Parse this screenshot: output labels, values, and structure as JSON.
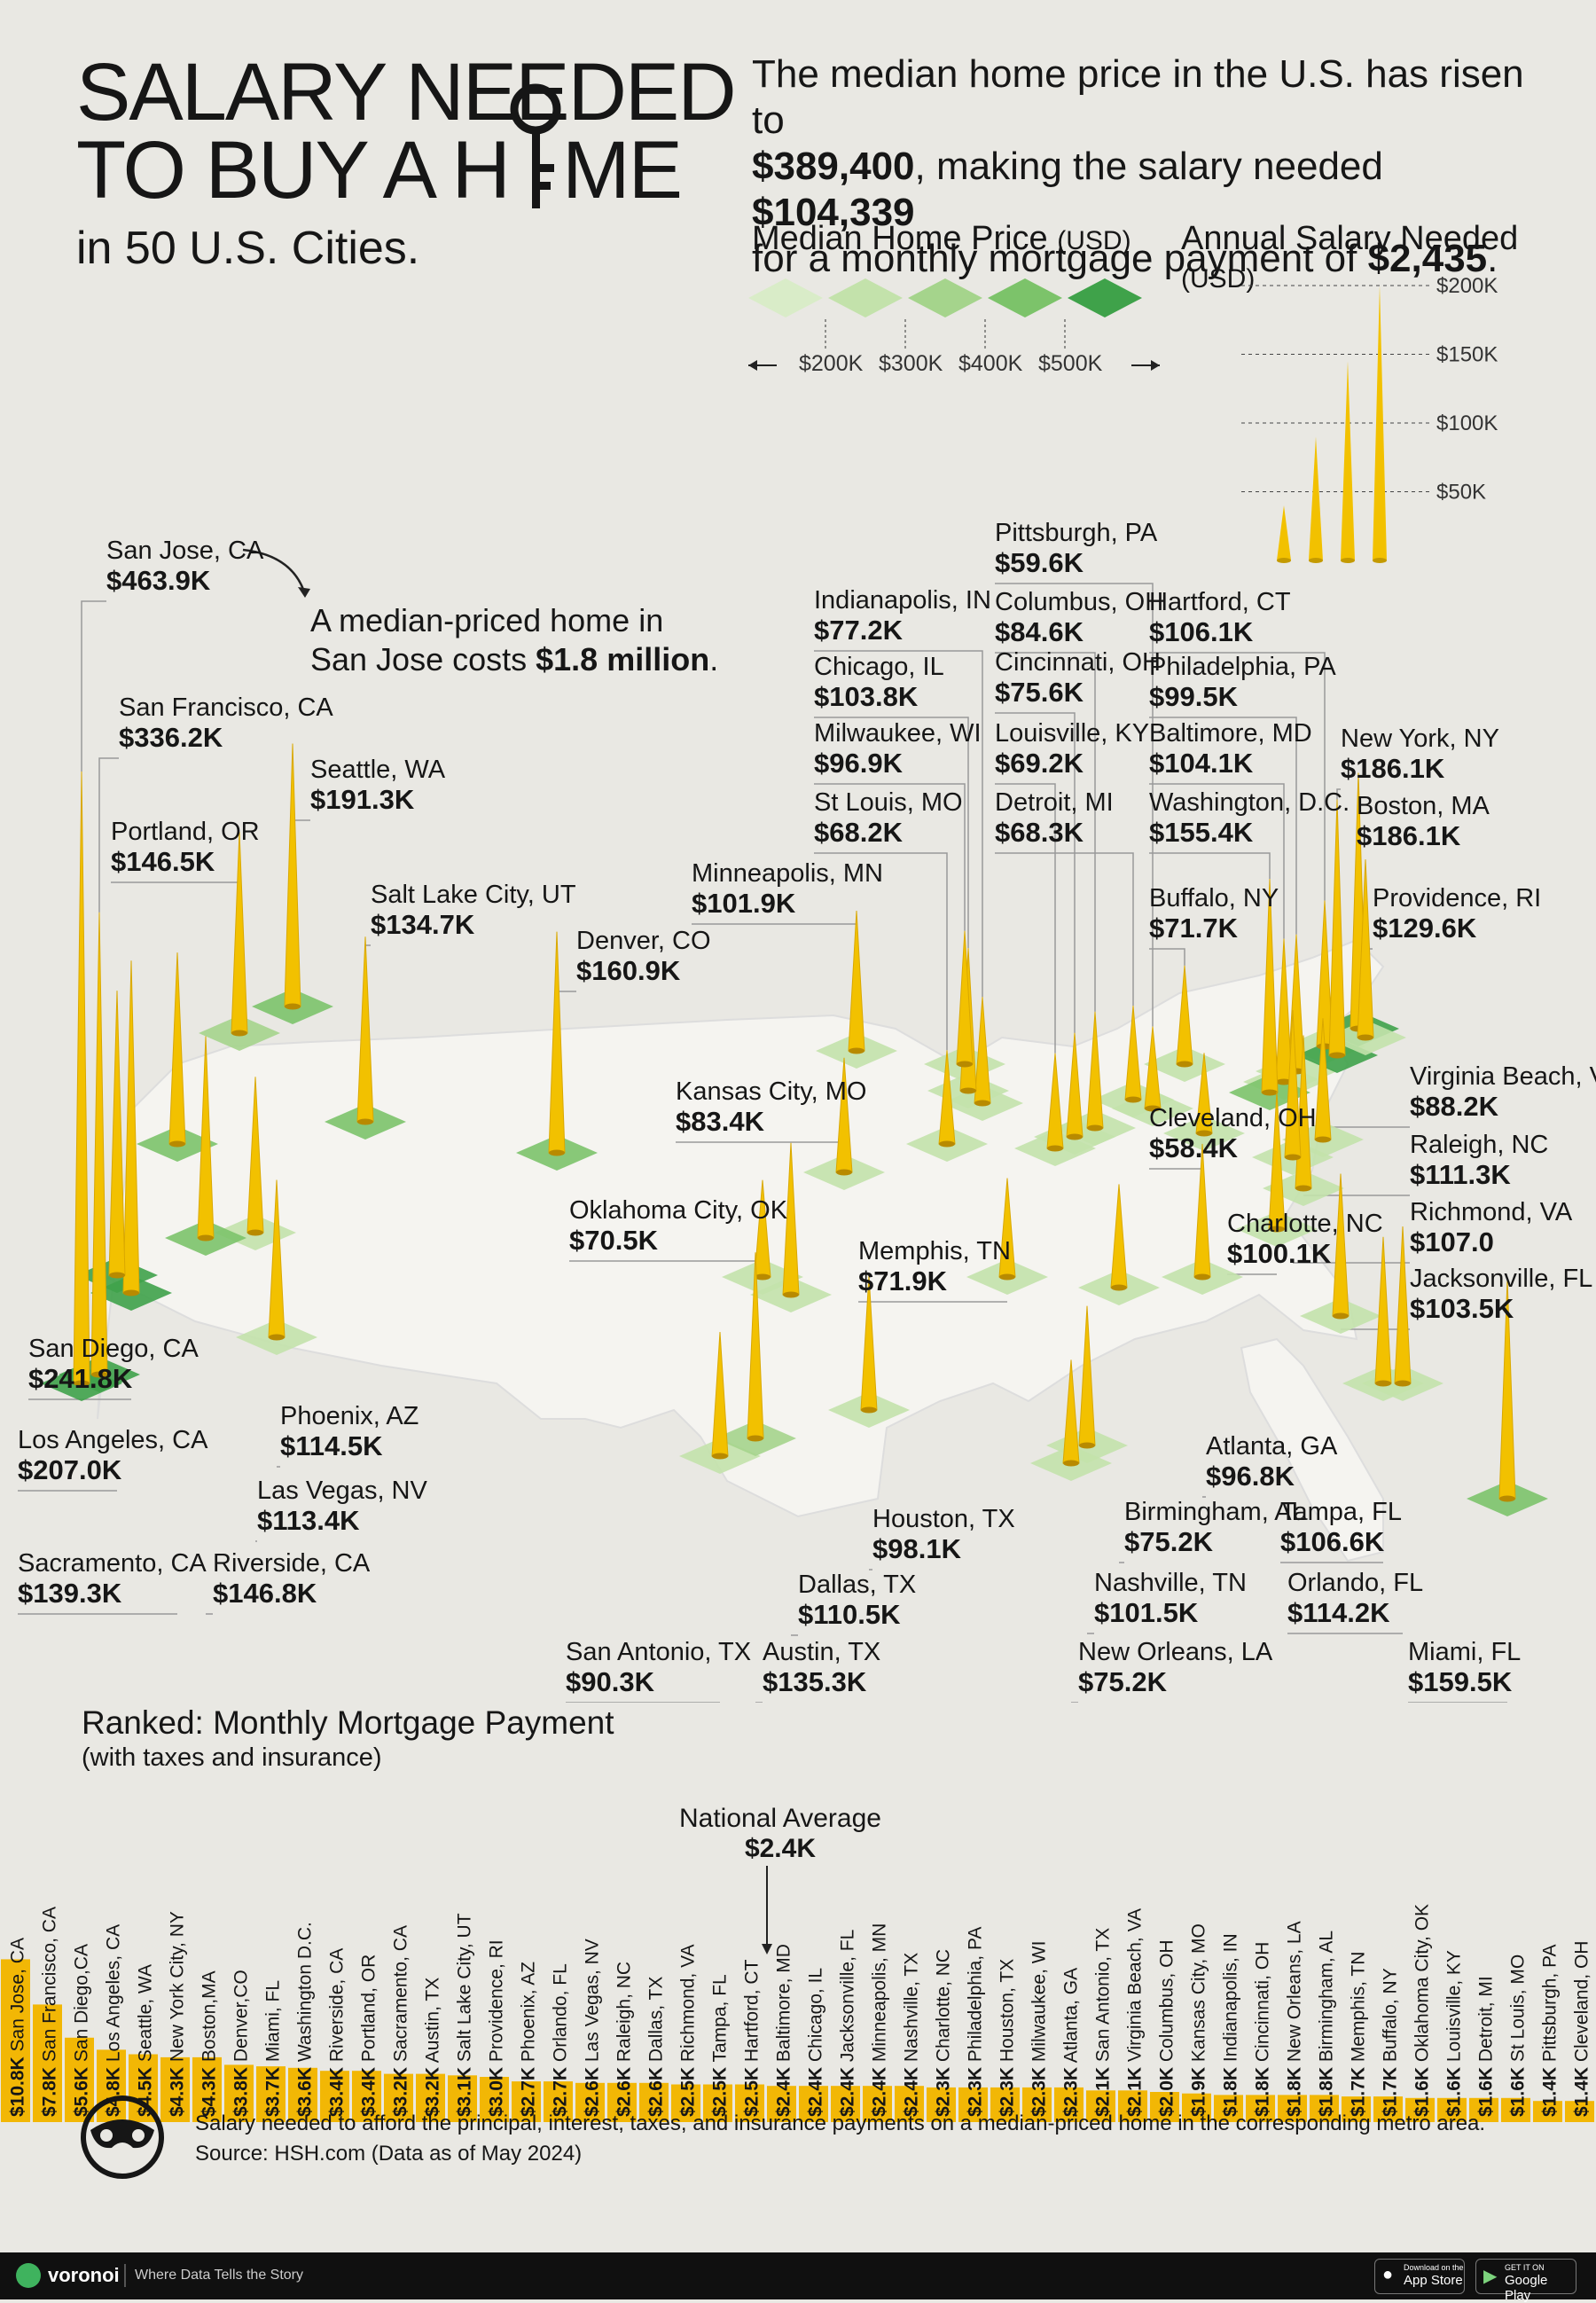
{
  "header": {
    "title_line1": "SALARY NEEDED",
    "title_line2": "TO BUY A H",
    "title_line2_end": "ME",
    "subtitle": "in 50 U.S. Cities.",
    "intro_1": "The median home price in the U.S. has risen to",
    "intro_price": "$389,400",
    "intro_2": ", making the salary needed ",
    "intro_salary": "$104,339",
    "intro_3": "for a monthly mortgage payment of ",
    "intro_payment": "$2,435",
    "intro_4": "."
  },
  "legend": {
    "price_title": "Median Home Price",
    "price_unit": "(USD)",
    "price_ticks": [
      "$200K",
      "$300K",
      "$400K",
      "$500K"
    ],
    "salary_title": "Annual Salary Needed",
    "salary_unit": "(USD)",
    "salary_ticks": [
      "$200K",
      "$150K",
      "$100K",
      "$50K"
    ],
    "colors": [
      "#d9ecc8",
      "#c3e2ab",
      "#a5d48c",
      "#7cc36a",
      "#3fa24a"
    ]
  },
  "annotation": {
    "line1": "A median-priced home in",
    "line2_a": "San Jose costs ",
    "line2_b": "$1.8 million",
    "line2_c": "."
  },
  "chart_data": [
    {
      "type": "map",
      "metric": "Annual Salary Needed (USD)",
      "points": [
        {
          "city": "San Jose, CA",
          "value": "$463.9K",
          "salary_k": 463.9
        },
        {
          "city": "San Francisco, CA",
          "value": "$336.2K",
          "salary_k": 336.2
        },
        {
          "city": "Seattle, WA",
          "value": "$191.3K",
          "salary_k": 191.3
        },
        {
          "city": "Portland, OR",
          "value": "$146.5K",
          "salary_k": 146.5
        },
        {
          "city": "Salt Lake City, UT",
          "value": "$134.7K",
          "salary_k": 134.7
        },
        {
          "city": "Denver, CO",
          "value": "$160.9K",
          "salary_k": 160.9
        },
        {
          "city": "Minneapolis, MN",
          "value": "$101.9K",
          "salary_k": 101.9
        },
        {
          "city": "Indianapolis, IN",
          "value": "$77.2K",
          "salary_k": 77.2
        },
        {
          "city": "Chicago, IL",
          "value": "$103.8K",
          "salary_k": 103.8
        },
        {
          "city": "Milwaukee, WI",
          "value": "$96.9K",
          "salary_k": 96.9
        },
        {
          "city": "St Louis, MO",
          "value": "$68.2K",
          "salary_k": 68.2
        },
        {
          "city": "Pittsburgh, PA",
          "value": "$59.6K",
          "salary_k": 59.6
        },
        {
          "city": "Columbus, OH",
          "value": "$84.6K",
          "salary_k": 84.6
        },
        {
          "city": "Cincinnati, OH",
          "value": "$75.6K",
          "salary_k": 75.6
        },
        {
          "city": "Louisville, KY",
          "value": "$69.2K",
          "salary_k": 69.2
        },
        {
          "city": "Detroit, MI",
          "value": "$68.3K",
          "salary_k": 68.3
        },
        {
          "city": "Hartford, CT",
          "value": "$106.1K",
          "salary_k": 106.1
        },
        {
          "city": "Philadelphia, PA",
          "value": "$99.5K",
          "salary_k": 99.5
        },
        {
          "city": "Baltimore, MD",
          "value": "$104.1K",
          "salary_k": 104.1
        },
        {
          "city": "Washington, D.C.",
          "value": "$155.4K",
          "salary_k": 155.4
        },
        {
          "city": "Buffalo, NY",
          "value": "$71.7K",
          "salary_k": 71.7
        },
        {
          "city": "New York, NY",
          "value": "$186.1K",
          "salary_k": 186.1
        },
        {
          "city": "Boston, MA",
          "value": "$186.1K",
          "salary_k": 186.1
        },
        {
          "city": "Providence, RI",
          "value": "$129.6K",
          "salary_k": 129.6
        },
        {
          "city": "Virginia Beach, VA",
          "value": "$88.2K",
          "salary_k": 88.2
        },
        {
          "city": "Raleigh, NC",
          "value": "$111.3K",
          "salary_k": 111.3
        },
        {
          "city": "Richmond, VA",
          "value": "$107.0",
          "salary_k": 107.0
        },
        {
          "city": "Jacksonville, FL",
          "value": "$103.5K",
          "salary_k": 103.5
        },
        {
          "city": "Cleveland, OH",
          "value": "$58.4K",
          "salary_k": 58.4
        },
        {
          "city": "Charlotte, NC",
          "value": "$100.1K",
          "salary_k": 100.1
        },
        {
          "city": "Kansas City, MO",
          "value": "$83.4K",
          "salary_k": 83.4
        },
        {
          "city": "Oklahoma City, OK",
          "value": "$70.5K",
          "salary_k": 70.5
        },
        {
          "city": "Memphis, TN",
          "value": "$71.9K",
          "salary_k": 71.9
        },
        {
          "city": "San Diego, CA",
          "value": "$241.8K",
          "salary_k": 241.8
        },
        {
          "city": "Los Angeles, CA",
          "value": "$207.0K",
          "salary_k": 207.0
        },
        {
          "city": "Phoenix, AZ",
          "value": "$114.5K",
          "salary_k": 114.5
        },
        {
          "city": "Las Vegas, NV",
          "value": "$113.4K",
          "salary_k": 113.4
        },
        {
          "city": "Sacramento, CA",
          "value": "$139.3K",
          "salary_k": 139.3
        },
        {
          "city": "Riverside, CA",
          "value": "$146.8K",
          "salary_k": 146.8
        },
        {
          "city": "Atlanta, GA",
          "value": "$96.8K",
          "salary_k": 96.8
        },
        {
          "city": "Birmingham, AL",
          "value": "$75.2K",
          "salary_k": 75.2
        },
        {
          "city": "Tampa, FL",
          "value": "$106.6K",
          "salary_k": 106.6
        },
        {
          "city": "Orlando, FL",
          "value": "$114.2K",
          "salary_k": 114.2
        },
        {
          "city": "Houston, TX",
          "value": "$98.1K",
          "salary_k": 98.1
        },
        {
          "city": "Dallas, TX",
          "value": "$110.5K",
          "salary_k": 110.5
        },
        {
          "city": "Nashville, TN",
          "value": "$101.5K",
          "salary_k": 101.5
        },
        {
          "city": "San Antonio, TX",
          "value": "$90.3K",
          "salary_k": 90.3
        },
        {
          "city": "Austin, TX",
          "value": "$135.3K",
          "salary_k": 135.3
        },
        {
          "city": "New Orleans, LA",
          "value": "$75.2K",
          "salary_k": 75.2
        },
        {
          "city": "Miami, FL",
          "value": "$159.5K",
          "salary_k": 159.5
        }
      ]
    },
    {
      "type": "bar",
      "title": "Ranked: Monthly Mortgage Payment",
      "subtitle": "(with taxes and insurance)",
      "bar_color": "#f2b705",
      "categories": [
        "San Jose, CA",
        "San Francisco, CA",
        "San Diego,CA",
        "Los Angeles, CA",
        "Seattle, WA",
        "New York City, NY",
        "Boston,MA",
        "Denver,CO",
        "Miami, FL",
        "Washington D.C.",
        "Riverside, CA",
        "Portland, OR",
        "Sacramento, CA",
        "Austin, TX",
        "Salt Lake City, UT",
        "Providence, RI",
        "Phoenix, AZ",
        "Orlando, FL",
        "Las Vegas, NV",
        "Raleigh, NC",
        "Dallas, TX",
        "Richmond, VA",
        "Tampa, FL",
        "Hartford, CT",
        "Baltimore, MD",
        "Chicago, IL",
        "Jacksonville, FL",
        "Minneapolis, MN",
        "Nashville, TX",
        "Charlotte, NC",
        "Philadelphia, PA",
        "Houston, TX",
        "Milwaukee, WI",
        "Atlanta, GA",
        "San Antonio, TX",
        "Virginia Beach, VA",
        "Columbus, OH",
        "Kansas City, MO",
        "Indianapolis, IN",
        "Cincinnati, OH",
        "New Orleans, LA",
        "Birmingham, AL",
        "Memphis, TN",
        "Buffalo, NY",
        "Oklahoma City, OK",
        "Louisville, KY",
        "Detroit, MI",
        "St Louis, MO",
        "Pittsburgh, PA",
        "Cleveland, OH"
      ],
      "labels": [
        "$10.8K",
        "$7.8K",
        "$5.6K",
        "$4.8K",
        "$4.5K",
        "$4.3K",
        "$4.3K",
        "$3.8K",
        "$3.7K",
        "$3.6K",
        "$3.4K",
        "$3.4K",
        "$3.2K",
        "$3.2K",
        "$3.1K",
        "$3.0K",
        "$2.7K",
        "$2.7K",
        "$2.6K",
        "$2.6K",
        "$2.6K",
        "$2.5K",
        "$2.5K",
        "$2.5K",
        "$2.4K",
        "$2.4K",
        "$2.4K",
        "$2.4K",
        "$2.4K",
        "$2.3K",
        "$2.3K",
        "$2.3K",
        "$2.3K",
        "$2.3K",
        "$2.1K",
        "$2.1K",
        "$2.0K",
        "$1.9K",
        "$1.8K",
        "$1.8K",
        "$1.8K",
        "$1.8K",
        "$1.7K",
        "$1.7K",
        "$1.6K",
        "$1.6K",
        "$1.6K",
        "$1.6K",
        "$1.4K",
        "$1.4K"
      ],
      "values": [
        10.8,
        7.8,
        5.6,
        4.8,
        4.5,
        4.3,
        4.3,
        3.8,
        3.7,
        3.6,
        3.4,
        3.4,
        3.2,
        3.2,
        3.1,
        3.0,
        2.7,
        2.7,
        2.6,
        2.6,
        2.6,
        2.5,
        2.5,
        2.5,
        2.4,
        2.4,
        2.4,
        2.4,
        2.4,
        2.3,
        2.3,
        2.3,
        2.3,
        2.3,
        2.1,
        2.1,
        2.0,
        1.9,
        1.8,
        1.8,
        1.8,
        1.8,
        1.7,
        1.7,
        1.6,
        1.6,
        1.6,
        1.6,
        1.4,
        1.4
      ],
      "average_label": "National Average",
      "average_value": "$2.4K",
      "average_after_index": 23
    }
  ],
  "footer": {
    "note": "Salary needed to afford the principal, interest, taxes, and insurance payments on a median-priced home in the corresponding metro area.",
    "source": "Source: HSH.com (Data as of May 2024)",
    "brand": "voronoi",
    "tagline": "Where Data Tells the Story",
    "app_store_small": "Download on the",
    "app_store": "App Store",
    "google_small": "GET IT ON",
    "google": "Google Play"
  }
}
